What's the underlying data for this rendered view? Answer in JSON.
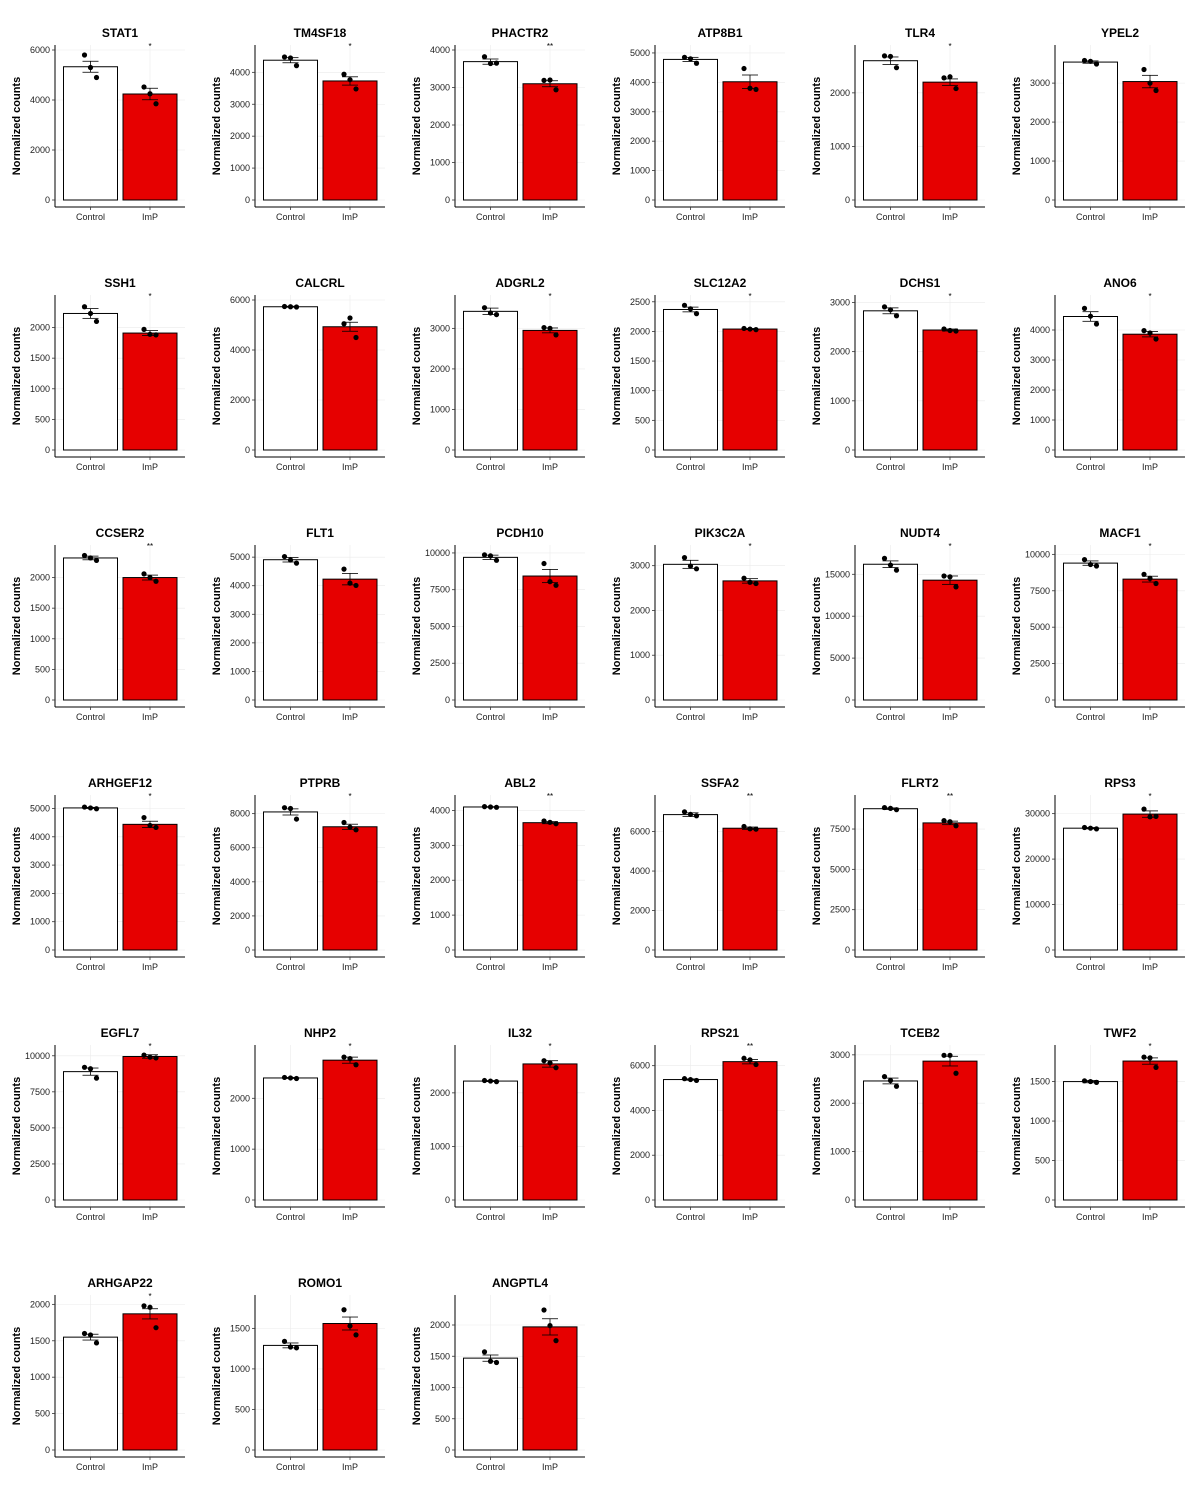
{
  "y_axis_label": "Normalized counts",
  "colors": {
    "control_fill": "#ffffff",
    "imp_fill": "#e60000",
    "outline": "#000000",
    "grid": "#ebebeb"
  },
  "chart_data": [
    {
      "type": "bar",
      "title": "STAT1",
      "categories": [
        "Control",
        "ImP"
      ],
      "values": [
        5330,
        4240
      ],
      "errors": [
        220,
        230
      ],
      "points": [
        [
          5800,
          5300,
          4900
        ],
        [
          4520,
          4250,
          3850
        ]
      ],
      "significance": "*",
      "yticks": [
        0,
        2000,
        4000,
        6000
      ],
      "ylim": [
        0,
        6000
      ],
      "ylabel": "Normalized counts"
    },
    {
      "type": "bar",
      "title": "TM4SF18",
      "categories": [
        "Control",
        "ImP"
      ],
      "values": [
        4380,
        3730
      ],
      "errors": [
        80,
        130
      ],
      "points": [
        [
          4480,
          4450,
          4210
        ],
        [
          3940,
          3770,
          3480
        ]
      ],
      "significance": "*",
      "yticks": [
        0,
        1000,
        2000,
        3000,
        4000
      ],
      "ylim": [
        0,
        4700
      ],
      "ylabel": "Normalized counts"
    },
    {
      "type": "bar",
      "title": "PHACTR2",
      "categories": [
        "Control",
        "ImP"
      ],
      "values": [
        3690,
        3100
      ],
      "errors": [
        70,
        80
      ],
      "points": [
        [
          3820,
          3640,
          3650
        ],
        [
          3190,
          3200,
          2940
        ]
      ],
      "significance": "**",
      "yticks": [
        0,
        1000,
        2000,
        3000,
        4000
      ],
      "ylim": [
        0,
        4000
      ],
      "ylabel": "Normalized counts"
    },
    {
      "type": "bar",
      "title": "ATP8B1",
      "categories": [
        "Control",
        "ImP"
      ],
      "values": [
        4780,
        4020
      ],
      "errors": [
        70,
        230
      ],
      "points": [
        [
          4850,
          4800,
          4650
        ],
        [
          4470,
          3800,
          3760
        ]
      ],
      "significance": "",
      "yticks": [
        0,
        1000,
        2000,
        3000,
        4000,
        5000
      ],
      "ylim": [
        0,
        5100
      ],
      "ylabel": "Normalized counts"
    },
    {
      "type": "bar",
      "title": "TLR4",
      "categories": [
        "Control",
        "ImP"
      ],
      "values": [
        2600,
        2200
      ],
      "errors": [
        70,
        60
      ],
      "points": [
        [
          2690,
          2680,
          2470
        ],
        [
          2280,
          2300,
          2080
        ]
      ],
      "significance": "*",
      "yticks": [
        0,
        1000,
        2000
      ],
      "ylim": [
        0,
        2800
      ],
      "ylabel": "Normalized counts"
    },
    {
      "type": "bar",
      "title": "YPEL2",
      "categories": [
        "Control",
        "ImP"
      ],
      "values": [
        3540,
        3040
      ],
      "errors": [
        30,
        160
      ],
      "points": [
        [
          3580,
          3560,
          3490
        ],
        [
          3350,
          3000,
          2810
        ]
      ],
      "significance": "",
      "yticks": [
        0,
        1000,
        2000,
        3000
      ],
      "ylim": [
        0,
        3850
      ],
      "ylabel": "Normalized counts"
    },
    {
      "type": "bar",
      "title": "SSH1",
      "categories": [
        "Control",
        "ImP"
      ],
      "values": [
        2230,
        1910
      ],
      "errors": [
        80,
        40
      ],
      "points": [
        [
          2340,
          2230,
          2100
        ],
        [
          1970,
          1890,
          1880
        ]
      ],
      "significance": "*",
      "yticks": [
        0,
        500,
        1000,
        1500,
        2000
      ],
      "ylim": [
        0,
        2450
      ],
      "ylabel": "Normalized counts"
    },
    {
      "type": "bar",
      "title": "CALCRL",
      "categories": [
        "Control",
        "ImP"
      ],
      "values": [
        5730,
        4930
      ],
      "errors": [
        20,
        180
      ],
      "points": [
        [
          5740,
          5730,
          5720
        ],
        [
          5050,
          5280,
          4500
        ]
      ],
      "significance": "",
      "yticks": [
        0,
        2000,
        4000,
        6000
      ],
      "ylim": [
        0,
        6000
      ],
      "ylabel": "Normalized counts"
    },
    {
      "type": "bar",
      "title": "ADGRL2",
      "categories": [
        "Control",
        "ImP"
      ],
      "values": [
        3420,
        2950
      ],
      "errors": [
        80,
        60
      ],
      "points": [
        [
          3510,
          3380,
          3340
        ],
        [
          3020,
          3000,
          2840
        ]
      ],
      "significance": "*",
      "yticks": [
        0,
        1000,
        2000,
        3000
      ],
      "ylim": [
        0,
        3700
      ],
      "ylabel": "Normalized counts"
    },
    {
      "type": "bar",
      "title": "SLC12A2",
      "categories": [
        "Control",
        "ImP"
      ],
      "values": [
        2370,
        2040
      ],
      "errors": [
        40,
        10
      ],
      "points": [
        [
          2440,
          2380,
          2300
        ],
        [
          2050,
          2040,
          2030
        ]
      ],
      "significance": "*",
      "yticks": [
        0,
        500,
        1000,
        1500,
        2000,
        2500
      ],
      "ylim": [
        0,
        2530
      ],
      "ylabel": "Normalized counts"
    },
    {
      "type": "bar",
      "title": "DCHS1",
      "categories": [
        "Control",
        "ImP"
      ],
      "values": [
        2830,
        2440
      ],
      "errors": [
        60,
        20
      ],
      "points": [
        [
          2910,
          2850,
          2730
        ],
        [
          2460,
          2430,
          2420
        ]
      ],
      "significance": "*",
      "yticks": [
        0,
        1000,
        2000,
        3000
      ],
      "ylim": [
        0,
        3050
      ],
      "ylabel": "Normalized counts"
    },
    {
      "type": "bar",
      "title": "ANO6",
      "categories": [
        "Control",
        "ImP"
      ],
      "values": [
        4450,
        3860
      ],
      "errors": [
        160,
        90
      ],
      "points": [
        [
          4720,
          4460,
          4200
        ],
        [
          3980,
          3900,
          3700
        ]
      ],
      "significance": "*",
      "yticks": [
        0,
        1000,
        2000,
        3000,
        4000
      ],
      "ylim": [
        0,
        5000
      ],
      "ylabel": "Normalized counts"
    },
    {
      "type": "bar",
      "title": "CCSER2",
      "categories": [
        "Control",
        "ImP"
      ],
      "values": [
        2320,
        2000
      ],
      "errors": [
        30,
        40
      ],
      "points": [
        [
          2360,
          2320,
          2280
        ],
        [
          2060,
          2000,
          1940
        ]
      ],
      "significance": "**",
      "yticks": [
        0,
        500,
        1000,
        1500,
        2000
      ],
      "ylim": [
        0,
        2450
      ],
      "ylabel": "Normalized counts"
    },
    {
      "type": "bar",
      "title": "FLT1",
      "categories": [
        "Control",
        "ImP"
      ],
      "values": [
        4910,
        4230
      ],
      "errors": [
        80,
        200
      ],
      "points": [
        [
          5020,
          4900,
          4790
        ],
        [
          4580,
          4090,
          4010
        ]
      ],
      "significance": "",
      "yticks": [
        0,
        1000,
        2000,
        3000,
        4000,
        5000
      ],
      "ylim": [
        0,
        5250
      ],
      "ylabel": "Normalized counts"
    },
    {
      "type": "bar",
      "title": "PCDH10",
      "categories": [
        "Control",
        "ImP"
      ],
      "values": [
        9700,
        8430
      ],
      "errors": [
        150,
        450
      ],
      "points": [
        [
          9870,
          9800,
          9500
        ],
        [
          9280,
          8050,
          7800
        ]
      ],
      "significance": "",
      "yticks": [
        0,
        2500,
        5000,
        7500,
        10000
      ],
      "ylim": [
        0,
        10200
      ],
      "ylabel": "Normalized counts"
    },
    {
      "type": "bar",
      "title": "PIK3C2A",
      "categories": [
        "Control",
        "ImP"
      ],
      "values": [
        3030,
        2660
      ],
      "errors": [
        90,
        50
      ],
      "points": [
        [
          3180,
          2990,
          2930
        ],
        [
          2720,
          2630,
          2600
        ]
      ],
      "significance": "*",
      "yticks": [
        0,
        1000,
        2000,
        3000
      ],
      "ylim": [
        0,
        3350
      ],
      "ylabel": "Normalized counts"
    },
    {
      "type": "bar",
      "title": "NUDT4",
      "categories": [
        "Control",
        "ImP"
      ],
      "values": [
        16200,
        14300
      ],
      "errors": [
        400,
        500
      ],
      "points": [
        [
          16900,
          16100,
          15500
        ],
        [
          14800,
          14700,
          13500
        ]
      ],
      "significance": "*",
      "yticks": [
        0,
        5000,
        10000,
        15000
      ],
      "ylim": [
        0,
        17900
      ],
      "ylabel": "Normalized counts"
    },
    {
      "type": "bar",
      "title": "MACF1",
      "categories": [
        "Control",
        "ImP"
      ],
      "values": [
        9400,
        8300
      ],
      "errors": [
        150,
        200
      ],
      "points": [
        [
          9640,
          9300,
          9200
        ],
        [
          8630,
          8350,
          8000
        ]
      ],
      "significance": "*",
      "yticks": [
        0,
        2500,
        5000,
        7500,
        10000
      ],
      "ylim": [
        0,
        10300
      ],
      "ylabel": "Normalized counts"
    },
    {
      "type": "bar",
      "title": "ARHGEF12",
      "categories": [
        "Control",
        "ImP"
      ],
      "values": [
        5020,
        4440
      ],
      "errors": [
        20,
        110
      ],
      "points": [
        [
          5050,
          5020,
          4990
        ],
        [
          4680,
          4400,
          4330
        ]
      ],
      "significance": "*",
      "yticks": [
        0,
        1000,
        2000,
        3000,
        4000,
        5000
      ],
      "ylim": [
        0,
        5300
      ],
      "ylabel": "Normalized counts"
    },
    {
      "type": "bar",
      "title": "PTPRB",
      "categories": [
        "Control",
        "ImP"
      ],
      "values": [
        8100,
        7230
      ],
      "errors": [
        180,
        150
      ],
      "points": [
        [
          8350,
          8300,
          7680
        ],
        [
          7480,
          7200,
          7050
        ]
      ],
      "significance": "*",
      "yticks": [
        0,
        2000,
        4000,
        6000,
        8000
      ],
      "ylim": [
        0,
        8800
      ],
      "ylabel": "Normalized counts"
    },
    {
      "type": "bar",
      "title": "ABL2",
      "categories": [
        "Control",
        "ImP"
      ],
      "values": [
        4100,
        3650
      ],
      "errors": [
        10,
        30
      ],
      "points": [
        [
          4110,
          4100,
          4090
        ],
        [
          3700,
          3660,
          3620
        ]
      ],
      "significance": "**",
      "yticks": [
        0,
        1000,
        2000,
        3000,
        4000
      ],
      "ylim": [
        0,
        4300
      ],
      "ylabel": "Normalized counts"
    },
    {
      "type": "bar",
      "title": "SSFA2",
      "categories": [
        "Control",
        "ImP"
      ],
      "values": [
        6860,
        6170
      ],
      "errors": [
        90,
        60
      ],
      "points": [
        [
          7000,
          6870,
          6800
        ],
        [
          6260,
          6140,
          6120
        ]
      ],
      "significance": "**",
      "yticks": [
        0,
        2000,
        4000,
        6000
      ],
      "ylim": [
        0,
        7600
      ],
      "ylabel": "Normalized counts"
    },
    {
      "type": "bar",
      "title": "FLRT2",
      "categories": [
        "Control",
        "ImP"
      ],
      "values": [
        8760,
        7880
      ],
      "errors": [
        50,
        110
      ],
      "points": [
        [
          8830,
          8780,
          8700
        ],
        [
          8020,
          7950,
          7700
        ]
      ],
      "significance": "**",
      "yticks": [
        0,
        2500,
        5000,
        7500
      ],
      "ylim": [
        0,
        9300
      ],
      "ylabel": "Normalized counts"
    },
    {
      "type": "bar",
      "title": "RPS3",
      "categories": [
        "Control",
        "ImP"
      ],
      "values": [
        26800,
        29900
      ],
      "errors": [
        150,
        700
      ],
      "points": [
        [
          26950,
          26800,
          26650
        ],
        [
          31000,
          29300,
          29400
        ]
      ],
      "significance": "*",
      "yticks": [
        0,
        10000,
        20000,
        30000
      ],
      "ylim": [
        0,
        33000
      ],
      "ylabel": "Normalized counts"
    },
    {
      "type": "bar",
      "title": "EGFL7",
      "categories": [
        "Control",
        "ImP"
      ],
      "values": [
        8900,
        9950
      ],
      "errors": [
        250,
        120
      ],
      "points": [
        [
          9200,
          9100,
          8450
        ],
        [
          10050,
          9900,
          9850
        ]
      ],
      "significance": "*",
      "yticks": [
        0,
        2500,
        5000,
        7500,
        10000
      ],
      "ylim": [
        0,
        10400
      ],
      "ylabel": "Normalized counts"
    },
    {
      "type": "bar",
      "title": "NHP2",
      "categories": [
        "Control",
        "ImP"
      ],
      "values": [
        2400,
        2750
      ],
      "errors": [
        10,
        60
      ],
      "points": [
        [
          2410,
          2400,
          2390
        ],
        [
          2810,
          2780,
          2660
        ]
      ],
      "significance": "*",
      "yticks": [
        0,
        1000,
        2000
      ],
      "ylim": [
        0,
        2950
      ],
      "ylabel": "Normalized counts"
    },
    {
      "type": "bar",
      "title": "IL32",
      "categories": [
        "Control",
        "ImP"
      ],
      "values": [
        2220,
        2540
      ],
      "errors": [
        10,
        60
      ],
      "points": [
        [
          2230,
          2220,
          2210
        ],
        [
          2600,
          2560,
          2470
        ]
      ],
      "significance": "*",
      "yticks": [
        0,
        1000,
        2000
      ],
      "ylim": [
        0,
        2800
      ],
      "ylabel": "Normalized counts"
    },
    {
      "type": "bar",
      "title": "RPS21",
      "categories": [
        "Control",
        "ImP"
      ],
      "values": [
        5380,
        6180
      ],
      "errors": [
        30,
        100
      ],
      "points": [
        [
          5420,
          5380,
          5340
        ],
        [
          6330,
          6260,
          6050
        ]
      ],
      "significance": "**",
      "yticks": [
        0,
        2000,
        4000,
        6000
      ],
      "ylim": [
        0,
        6700
      ],
      "ylabel": "Normalized counts"
    },
    {
      "type": "bar",
      "title": "TCEB2",
      "categories": [
        "Control",
        "ImP"
      ],
      "values": [
        2460,
        2870
      ],
      "errors": [
        60,
        100
      ],
      "points": [
        [
          2550,
          2470,
          2350
        ],
        [
          2990,
          2990,
          2620
        ]
      ],
      "significance": "",
      "yticks": [
        0,
        1000,
        2000,
        3000
      ],
      "ylim": [
        0,
        3100
      ],
      "ylabel": "Normalized counts"
    },
    {
      "type": "bar",
      "title": "TWF2",
      "categories": [
        "Control",
        "ImP"
      ],
      "values": [
        1500,
        1760
      ],
      "errors": [
        15,
        40
      ],
      "points": [
        [
          1510,
          1500,
          1490
        ],
        [
          1810,
          1800,
          1680
        ]
      ],
      "significance": "*",
      "yticks": [
        0,
        500,
        1000,
        1500
      ],
      "ylim": [
        0,
        1900
      ],
      "ylabel": "Normalized counts"
    },
    {
      "type": "bar",
      "title": "ARHGAP22",
      "categories": [
        "Control",
        "ImP"
      ],
      "values": [
        1550,
        1870
      ],
      "errors": [
        40,
        70
      ],
      "points": [
        [
          1600,
          1580,
          1470
        ],
        [
          1980,
          1960,
          1680
        ]
      ],
      "significance": "*",
      "yticks": [
        0,
        500,
        1000,
        1500,
        2000
      ],
      "ylim": [
        0,
        2060
      ],
      "ylabel": "Normalized counts"
    },
    {
      "type": "bar",
      "title": "ROMO1",
      "categories": [
        "Control",
        "ImP"
      ],
      "values": [
        1290,
        1560
      ],
      "errors": [
        30,
        80
      ],
      "points": [
        [
          1340,
          1270,
          1260
        ],
        [
          1730,
          1530,
          1420
        ]
      ],
      "significance": "",
      "yticks": [
        0,
        500,
        1000,
        1500
      ],
      "ylim": [
        0,
        1850
      ],
      "ylabel": "Normalized counts"
    },
    {
      "type": "bar",
      "title": "ANGPTL4",
      "categories": [
        "Control",
        "ImP"
      ],
      "values": [
        1470,
        1970
      ],
      "errors": [
        50,
        130
      ],
      "points": [
        [
          1570,
          1420,
          1400
        ],
        [
          2240,
          1990,
          1750
        ]
      ],
      "significance": "",
      "yticks": [
        0,
        500,
        1000,
        1500,
        2000
      ],
      "ylim": [
        0,
        2400
      ],
      "ylabel": "Normalized counts"
    }
  ]
}
